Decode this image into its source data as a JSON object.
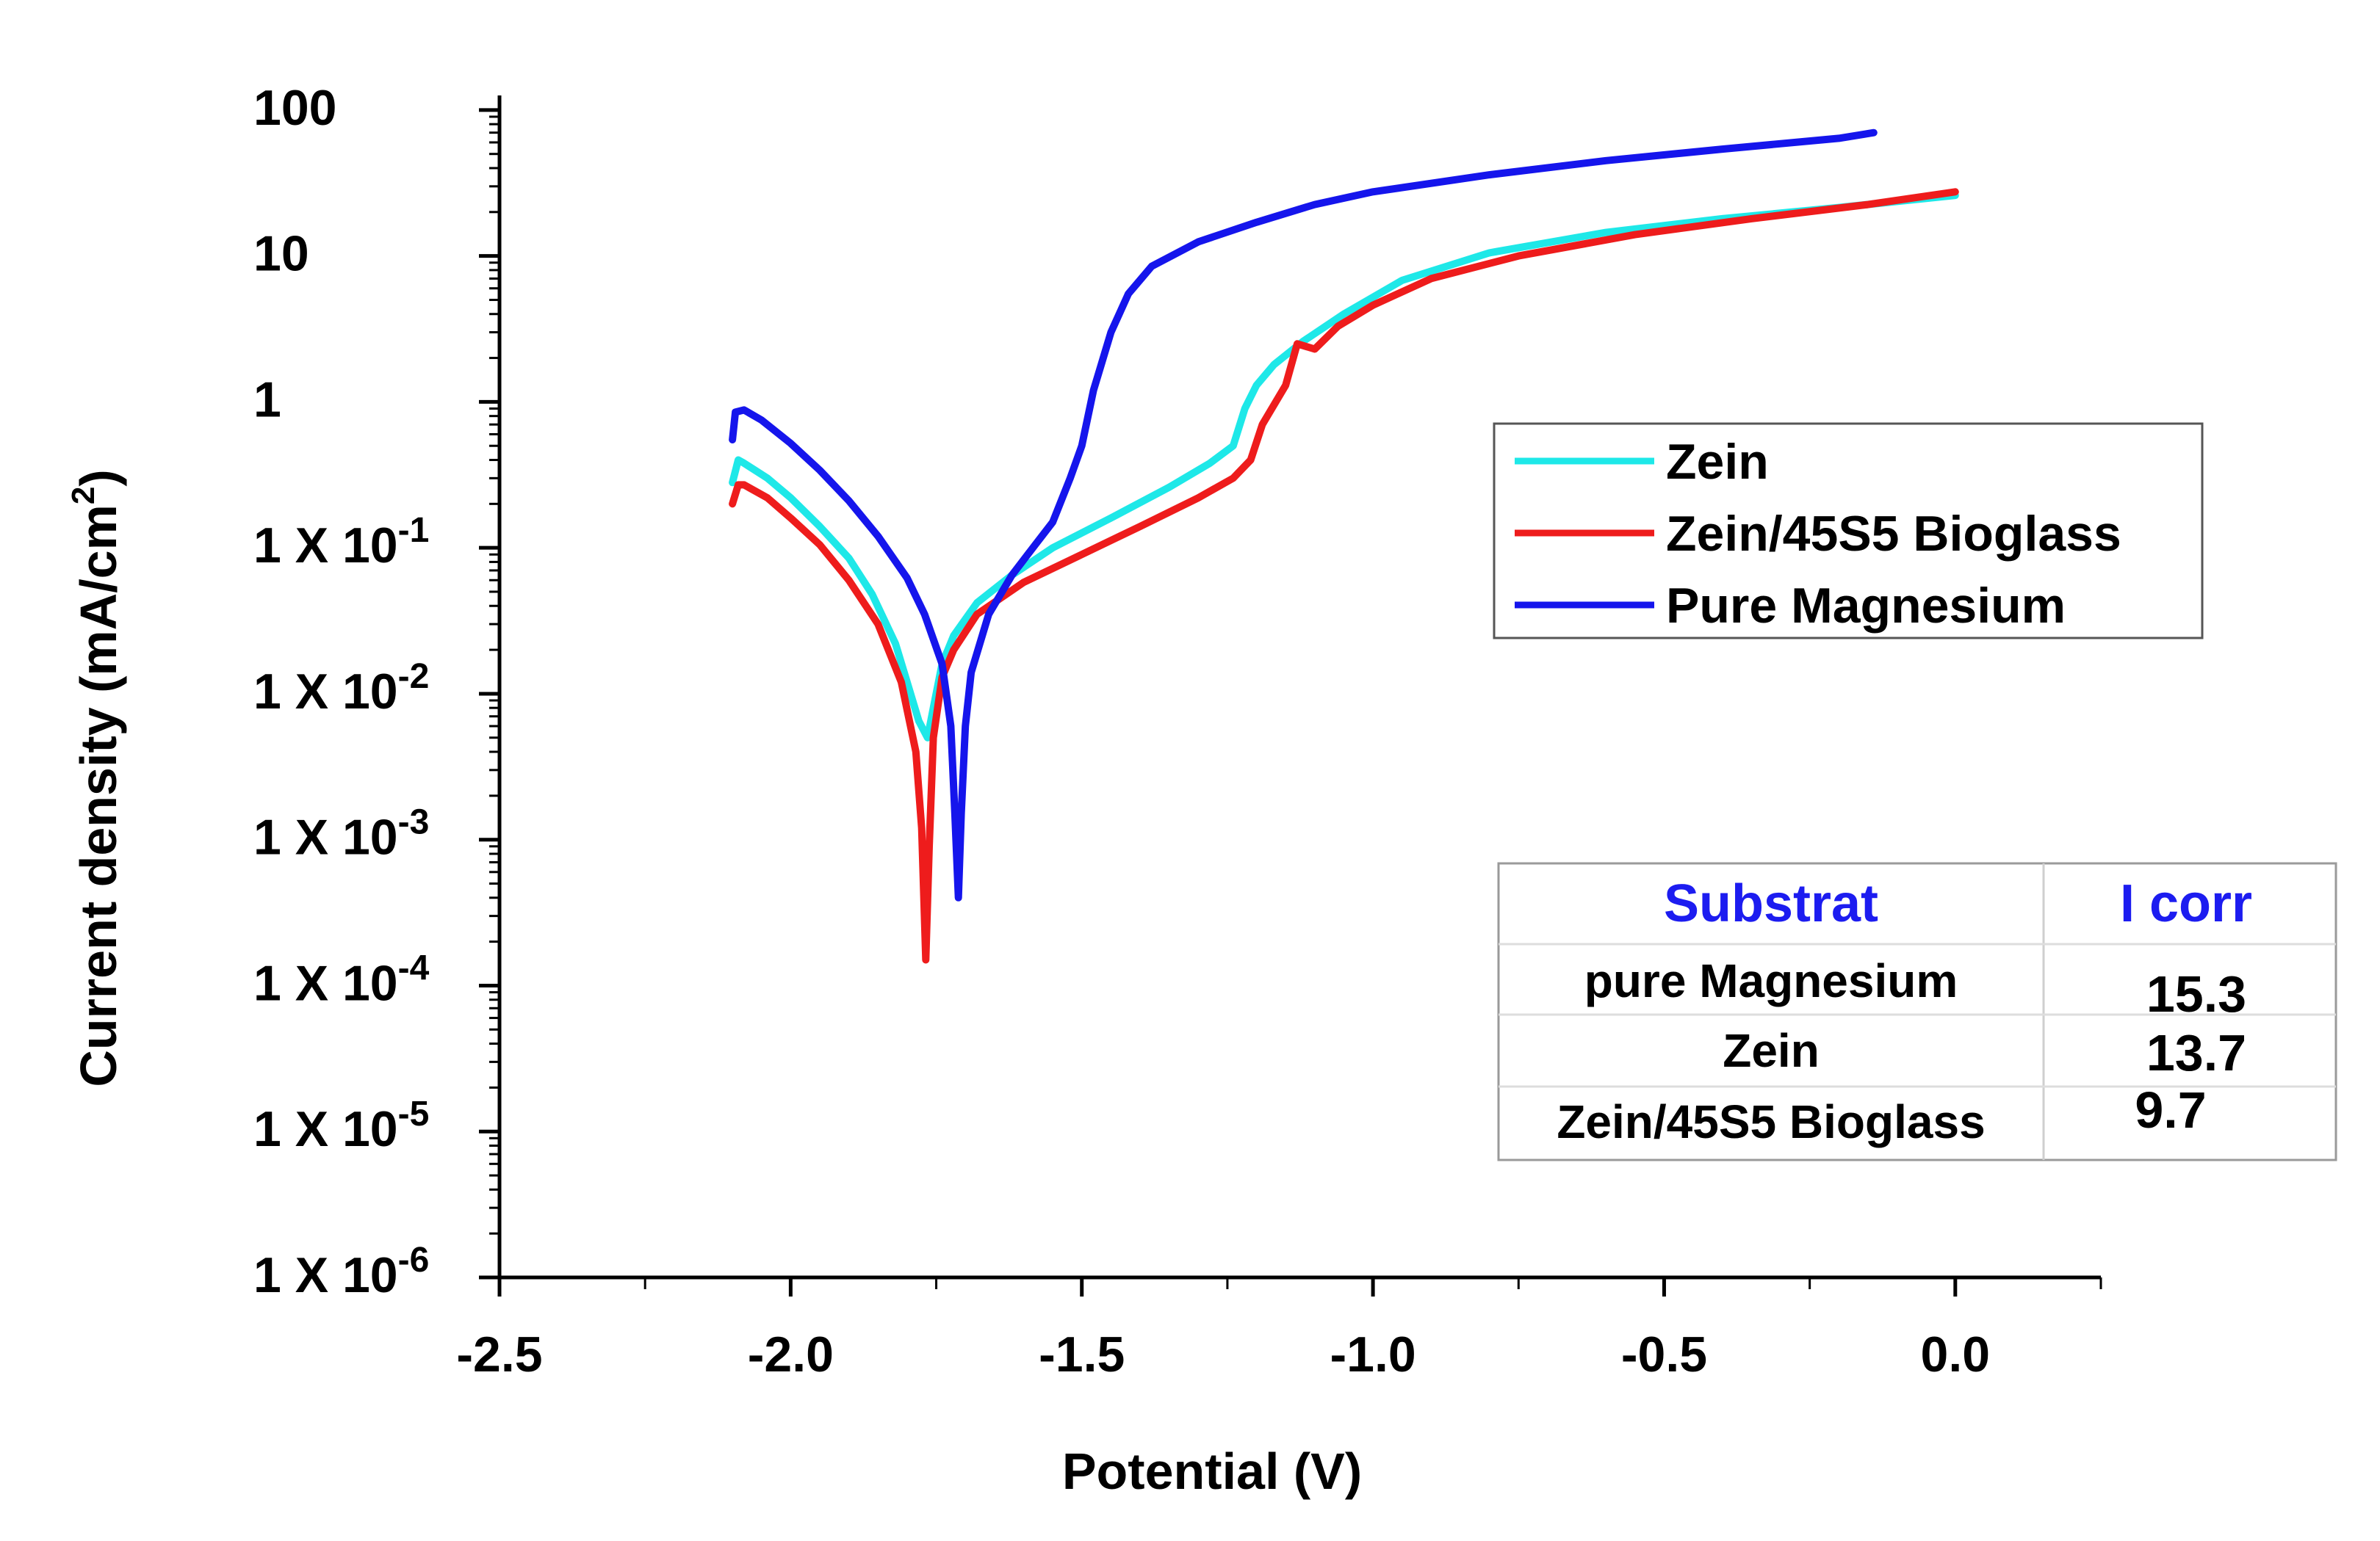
{
  "chart_data": {
    "type": "line",
    "title": "",
    "xlabel": "Potential (V)",
    "ylabel": "Current density (mA/cm",
    "ylabel_sup": "2",
    "ylabel_close": ")",
    "xlim": [
      -2.5,
      0.25
    ],
    "ylim_log10": [
      -6,
      2.1
    ],
    "yscale": "log",
    "x_ticks": [
      -2.5,
      -2.0,
      -1.5,
      -1.0,
      -0.5,
      0.0
    ],
    "x_tick_labels": [
      "-2.5",
      "-2.0",
      "-1.5",
      "-1.0",
      "-0.5",
      "0.0"
    ],
    "y_ticks": [
      {
        "exp": 2,
        "text": "100",
        "base": "",
        "sup": ""
      },
      {
        "exp": 1,
        "text": "10",
        "base": "",
        "sup": ""
      },
      {
        "exp": 0,
        "text": "1",
        "base": "",
        "sup": ""
      },
      {
        "exp": -1,
        "text": "",
        "base": "1 X 10",
        "sup": "-1"
      },
      {
        "exp": -2,
        "text": "",
        "base": "1 X 10",
        "sup": "-2"
      },
      {
        "exp": -3,
        "text": "",
        "base": "1 X 10",
        "sup": "-3"
      },
      {
        "exp": -4,
        "text": "",
        "base": "1 X 10",
        "sup": "-4"
      },
      {
        "exp": -5,
        "text": "",
        "base": "1 X 10",
        "sup": "-5"
      },
      {
        "exp": -6,
        "text": "",
        "base": "1 X 10",
        "sup": "-6"
      }
    ],
    "legend_position": "right-middle",
    "series": [
      {
        "name": "Zein",
        "color": "#1ee8e8",
        "points": [
          [
            -2.1,
            0.28
          ],
          [
            -2.09,
            0.4
          ],
          [
            -2.08,
            0.38
          ],
          [
            -2.04,
            0.3
          ],
          [
            -2.0,
            0.22
          ],
          [
            -1.95,
            0.14
          ],
          [
            -1.9,
            0.085
          ],
          [
            -1.86,
            0.048
          ],
          [
            -1.82,
            0.022
          ],
          [
            -1.8,
            0.012
          ],
          [
            -1.78,
            0.0065
          ],
          [
            -1.765,
            0.005
          ],
          [
            -1.755,
            0.008
          ],
          [
            -1.74,
            0.016
          ],
          [
            -1.72,
            0.025
          ],
          [
            -1.68,
            0.042
          ],
          [
            -1.62,
            0.065
          ],
          [
            -1.55,
            0.1
          ],
          [
            -1.45,
            0.16
          ],
          [
            -1.35,
            0.26
          ],
          [
            -1.28,
            0.38
          ],
          [
            -1.24,
            0.5
          ],
          [
            -1.22,
            0.9
          ],
          [
            -1.2,
            1.3
          ],
          [
            -1.17,
            1.8
          ],
          [
            -1.12,
            2.6
          ],
          [
            -1.05,
            4.0
          ],
          [
            -0.95,
            6.8
          ],
          [
            -0.8,
            10.5
          ],
          [
            -0.6,
            14.5
          ],
          [
            -0.4,
            18.0
          ],
          [
            -0.2,
            21.5
          ],
          [
            0.0,
            26.0
          ]
        ]
      },
      {
        "name": "Zein/45S5 Bioglass",
        "color": "#ee1c1c",
        "points": [
          [
            -2.1,
            0.2
          ],
          [
            -2.09,
            0.27
          ],
          [
            -2.08,
            0.27
          ],
          [
            -2.04,
            0.22
          ],
          [
            -2.0,
            0.16
          ],
          [
            -1.95,
            0.105
          ],
          [
            -1.9,
            0.06
          ],
          [
            -1.85,
            0.03
          ],
          [
            -1.81,
            0.012
          ],
          [
            -1.785,
            0.004
          ],
          [
            -1.775,
            0.0012
          ],
          [
            -1.768,
            0.00015
          ],
          [
            -1.762,
            0.0009
          ],
          [
            -1.755,
            0.005
          ],
          [
            -1.74,
            0.013
          ],
          [
            -1.72,
            0.02
          ],
          [
            -1.68,
            0.035
          ],
          [
            -1.6,
            0.058
          ],
          [
            -1.5,
            0.09
          ],
          [
            -1.4,
            0.14
          ],
          [
            -1.3,
            0.22
          ],
          [
            -1.24,
            0.3
          ],
          [
            -1.21,
            0.4
          ],
          [
            -1.19,
            0.7
          ],
          [
            -1.15,
            1.3
          ],
          [
            -1.13,
            2.5
          ],
          [
            -1.1,
            2.3
          ],
          [
            -1.06,
            3.3
          ],
          [
            -1.0,
            4.6
          ],
          [
            -0.9,
            7.0
          ],
          [
            -0.75,
            10.0
          ],
          [
            -0.55,
            14.0
          ],
          [
            -0.35,
            18.0
          ],
          [
            -0.15,
            22.5
          ],
          [
            0.0,
            27.5
          ]
        ]
      },
      {
        "name": "Pure Magnesium",
        "color": "#1515ec",
        "points": [
          [
            -2.1,
            0.55
          ],
          [
            -2.095,
            0.85
          ],
          [
            -2.08,
            0.88
          ],
          [
            -2.05,
            0.75
          ],
          [
            -2.0,
            0.52
          ],
          [
            -1.95,
            0.34
          ],
          [
            -1.9,
            0.21
          ],
          [
            -1.85,
            0.12
          ],
          [
            -1.8,
            0.062
          ],
          [
            -1.77,
            0.035
          ],
          [
            -1.74,
            0.016
          ],
          [
            -1.725,
            0.006
          ],
          [
            -1.718,
            0.0015
          ],
          [
            -1.712,
            0.0004
          ],
          [
            -1.707,
            0.0015
          ],
          [
            -1.7,
            0.006
          ],
          [
            -1.69,
            0.014
          ],
          [
            -1.66,
            0.035
          ],
          [
            -1.62,
            0.065
          ],
          [
            -1.58,
            0.105
          ],
          [
            -1.55,
            0.15
          ],
          [
            -1.52,
            0.3
          ],
          [
            -1.5,
            0.5
          ],
          [
            -1.48,
            1.2
          ],
          [
            -1.45,
            3.0
          ],
          [
            -1.42,
            5.5
          ],
          [
            -1.38,
            8.5
          ],
          [
            -1.3,
            12.5
          ],
          [
            -1.2,
            17.0
          ],
          [
            -1.1,
            22.5
          ],
          [
            -1.0,
            27.5
          ],
          [
            -0.8,
            36.0
          ],
          [
            -0.6,
            45.0
          ],
          [
            -0.4,
            54.0
          ],
          [
            -0.2,
            64.0
          ],
          [
            -0.14,
            70.0
          ]
        ]
      }
    ]
  },
  "results_table": {
    "headers": [
      "Substrat",
      "I corr"
    ],
    "rows": [
      {
        "substrat": "pure Magnesium",
        "icorr": "15.3"
      },
      {
        "substrat": "Zein",
        "icorr": "13.7"
      },
      {
        "substrat": "Zein/45S5 Bioglass",
        "icorr": "9.7"
      }
    ]
  }
}
